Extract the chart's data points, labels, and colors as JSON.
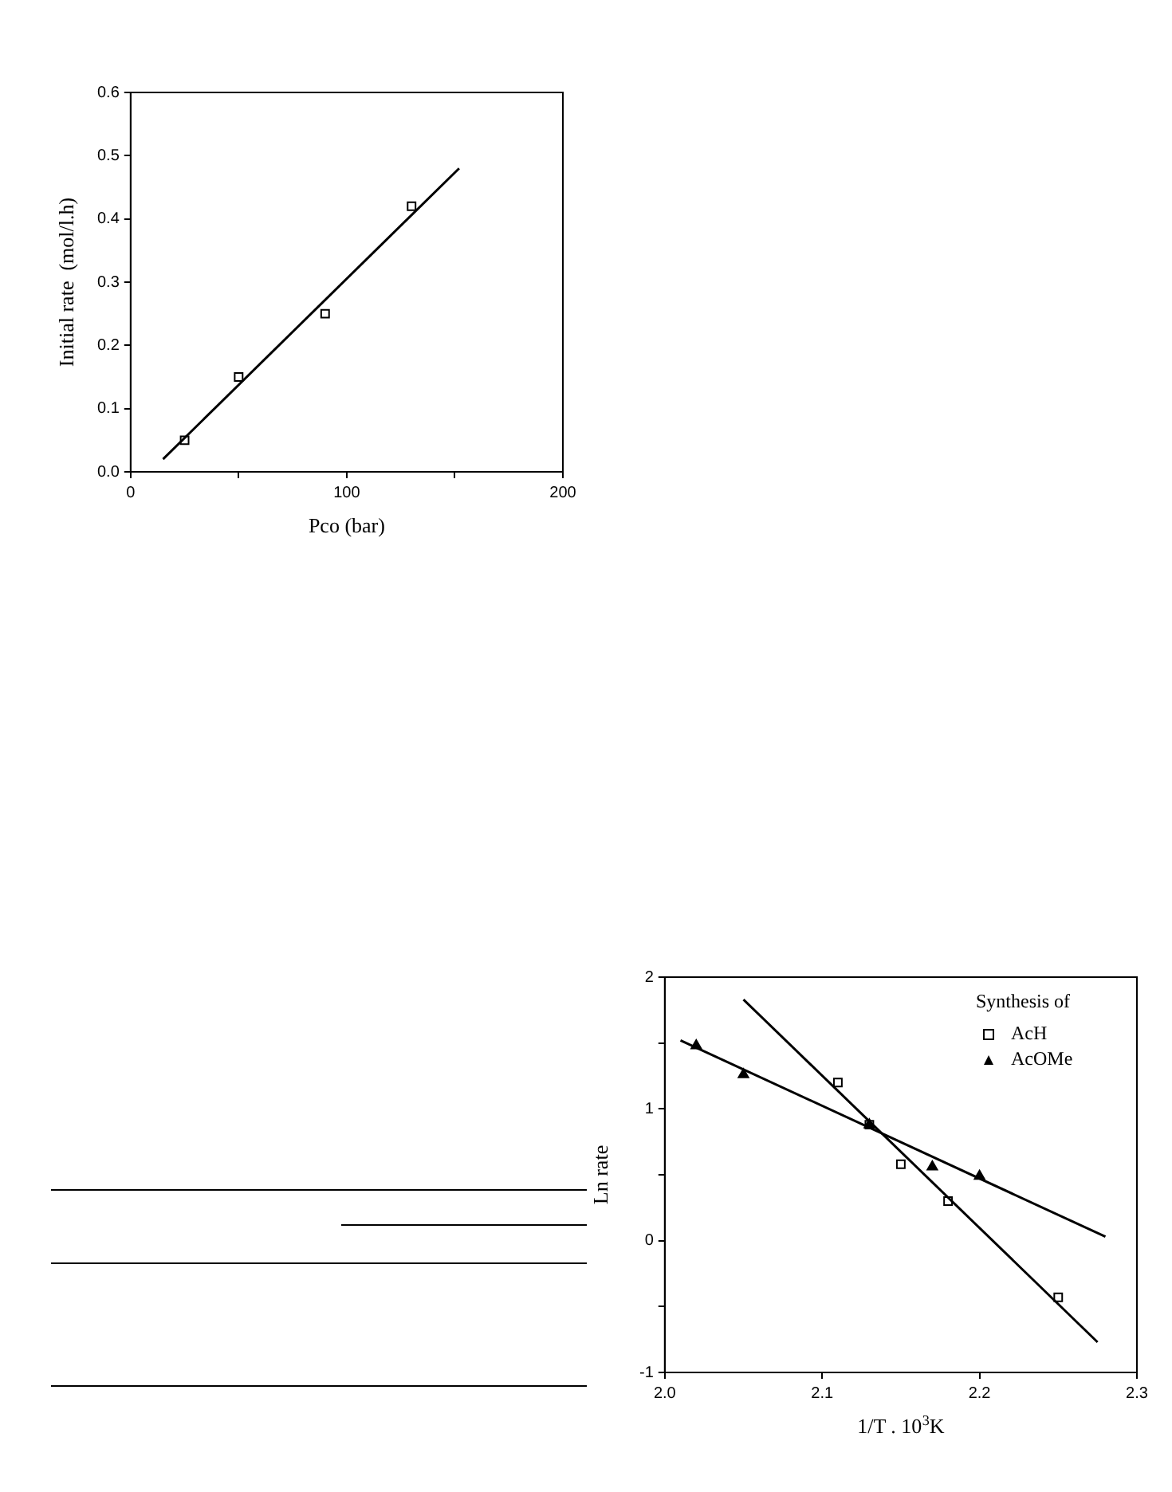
{
  "chart_data": [
    {
      "type": "scatter",
      "xlabel": "Pco (bar)",
      "ylabel": "Initial rate  (mol/l.h)",
      "xlim": [
        0,
        200
      ],
      "ylim": [
        0,
        0.6
      ],
      "xticks": [
        0,
        {
          "value": 50,
          "label": null
        },
        100,
        {
          "value": 150,
          "label": null
        },
        200
      ],
      "yticks": [
        {
          "value": 0,
          "label": "0.0"
        },
        0.1,
        0.2,
        0.3,
        0.4,
        0.5,
        0.6
      ],
      "grid": false,
      "legend": false,
      "series": [
        {
          "type": "scatter",
          "marker": "square",
          "color": "#000000",
          "x": [
            25,
            50,
            90,
            130
          ],
          "values": [
            0.05,
            0.15,
            0.25,
            0.42
          ]
        },
        {
          "type": "line",
          "marker": "none",
          "color": "#000000",
          "x": [
            15,
            152
          ],
          "values": [
            0.02,
            0.48
          ]
        }
      ]
    },
    {
      "type": "scatter",
      "xlabel": "1/T . 10$^{3}$K",
      "ylabel": "Ln rate",
      "legend_title": "Synthesis of",
      "legend": "top right",
      "xlim": [
        2.0,
        2.3
      ],
      "ylim": [
        -1,
        2
      ],
      "xticks": [
        {
          "value": 2,
          "label": "2.0"
        },
        2.1,
        2.2,
        2.3
      ],
      "yticks": [
        -1,
        {
          "value": -0.5,
          "label": null
        },
        0,
        {
          "value": 0.5,
          "label": null
        },
        1,
        {
          "value": 1.5,
          "label": null
        },
        2
      ],
      "grid": false,
      "series": [
        {
          "type": "scatter",
          "name": "AcH",
          "marker": "square",
          "color": "#000000",
          "x": [
            2.11,
            2.13,
            2.15,
            2.18,
            2.25
          ],
          "values": [
            1.2,
            0.88,
            0.58,
            0.3,
            -0.43
          ]
        },
        {
          "type": "scatter",
          "name": "AcOMe",
          "marker": "triangle",
          "color": "#000000",
          "x": [
            2.02,
            2.05,
            2.13,
            2.17,
            2.2
          ],
          "values": [
            1.48,
            1.26,
            0.88,
            0.56,
            0.49
          ]
        },
        {
          "type": "line",
          "marker": "none",
          "color": "#000000",
          "x": [
            2.05,
            2.275
          ],
          "values": [
            1.83,
            -0.77
          ]
        },
        {
          "type": "line",
          "marker": "none",
          "color": "#000000",
          "x": [
            2.01,
            2.28
          ],
          "values": [
            1.52,
            0.03
          ]
        }
      ]
    }
  ]
}
